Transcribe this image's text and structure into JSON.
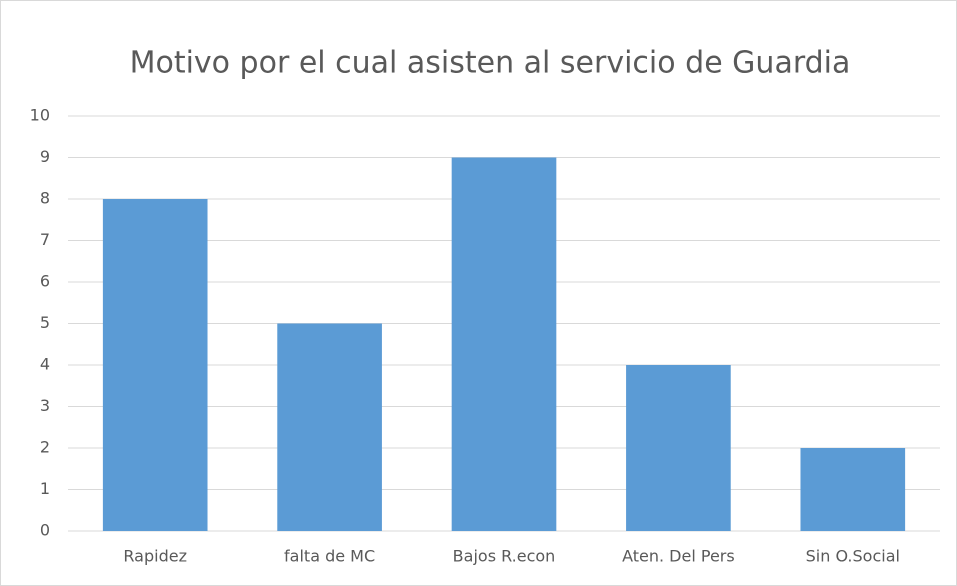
{
  "chart_data": {
    "type": "bar",
    "title": "Motivo por el cual asisten al servicio de Guardia",
    "categories": [
      "Rapidez",
      "falta de MC",
      "Bajos R.econ",
      "Aten. Del Pers",
      "Sin O.Social"
    ],
    "values": [
      8,
      5,
      9,
      4,
      2
    ],
    "color": "#5b9bd5",
    "ylim": [
      0,
      10
    ],
    "yticks": [
      0,
      1,
      2,
      3,
      4,
      5,
      6,
      7,
      8,
      9,
      10
    ],
    "grid": true
  }
}
